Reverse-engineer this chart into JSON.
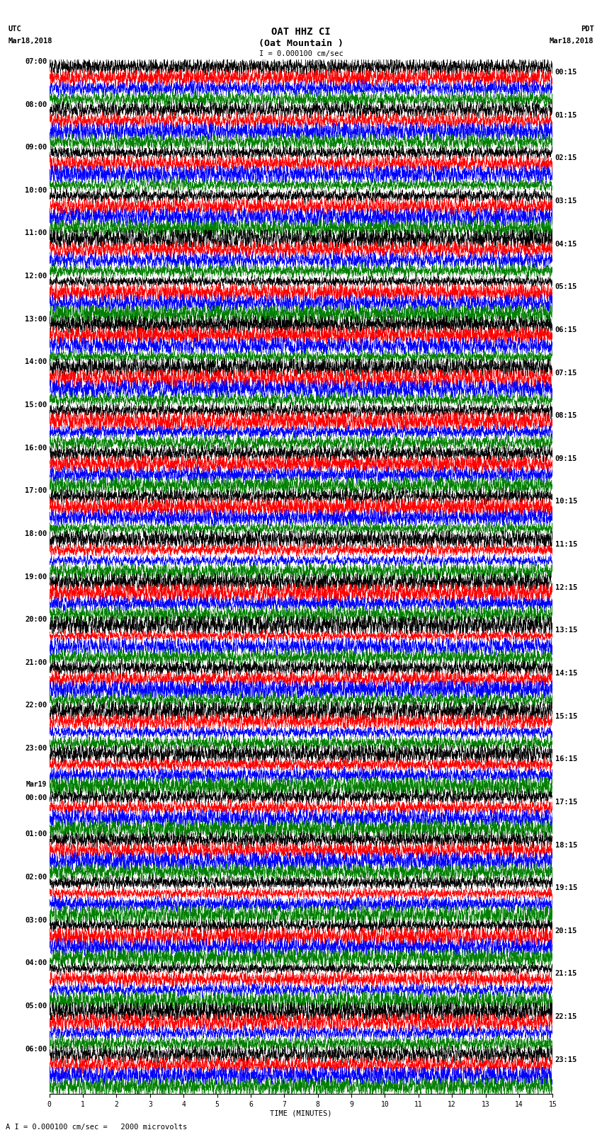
{
  "title_line1": "OAT HHZ CI",
  "title_line2": "(Oat Mountain )",
  "scale_label": "I = 0.000100 cm/sec",
  "footer_label": "A I = 0.000100 cm/sec =   2000 microvolts",
  "xlabel": "TIME (MINUTES)",
  "utc_label": "UTC",
  "utc_date": "Mar18,2018",
  "pdt_label": "PDT",
  "pdt_date": "Mar18,2018",
  "left_times": [
    "07:00",
    "08:00",
    "09:00",
    "10:00",
    "11:00",
    "12:00",
    "13:00",
    "14:00",
    "15:00",
    "16:00",
    "17:00",
    "18:00",
    "19:00",
    "20:00",
    "21:00",
    "22:00",
    "23:00",
    "Mar19\n00:00",
    "01:00",
    "02:00",
    "03:00",
    "04:00",
    "05:00",
    "06:00"
  ],
  "right_times": [
    "00:15",
    "01:15",
    "02:15",
    "03:15",
    "04:15",
    "05:15",
    "06:15",
    "07:15",
    "08:15",
    "09:15",
    "10:15",
    "11:15",
    "12:15",
    "13:15",
    "14:15",
    "15:15",
    "16:15",
    "17:15",
    "18:15",
    "19:15",
    "20:15",
    "21:15",
    "22:15",
    "23:15"
  ],
  "n_rows": 96,
  "colors_cycle": [
    "black",
    "red",
    "blue",
    "green"
  ],
  "bg_color": "white",
  "fig_width": 8.5,
  "fig_height": 16.13,
  "dpi": 100,
  "x_min": 0,
  "x_max": 15,
  "x_ticks": [
    0,
    1,
    2,
    3,
    4,
    5,
    6,
    7,
    8,
    9,
    10,
    11,
    12,
    13,
    14,
    15
  ],
  "amplitude": 0.42,
  "title_fontsize": 10,
  "label_fontsize": 7.5,
  "tick_fontsize": 7,
  "time_label_fontsize": 7.5
}
